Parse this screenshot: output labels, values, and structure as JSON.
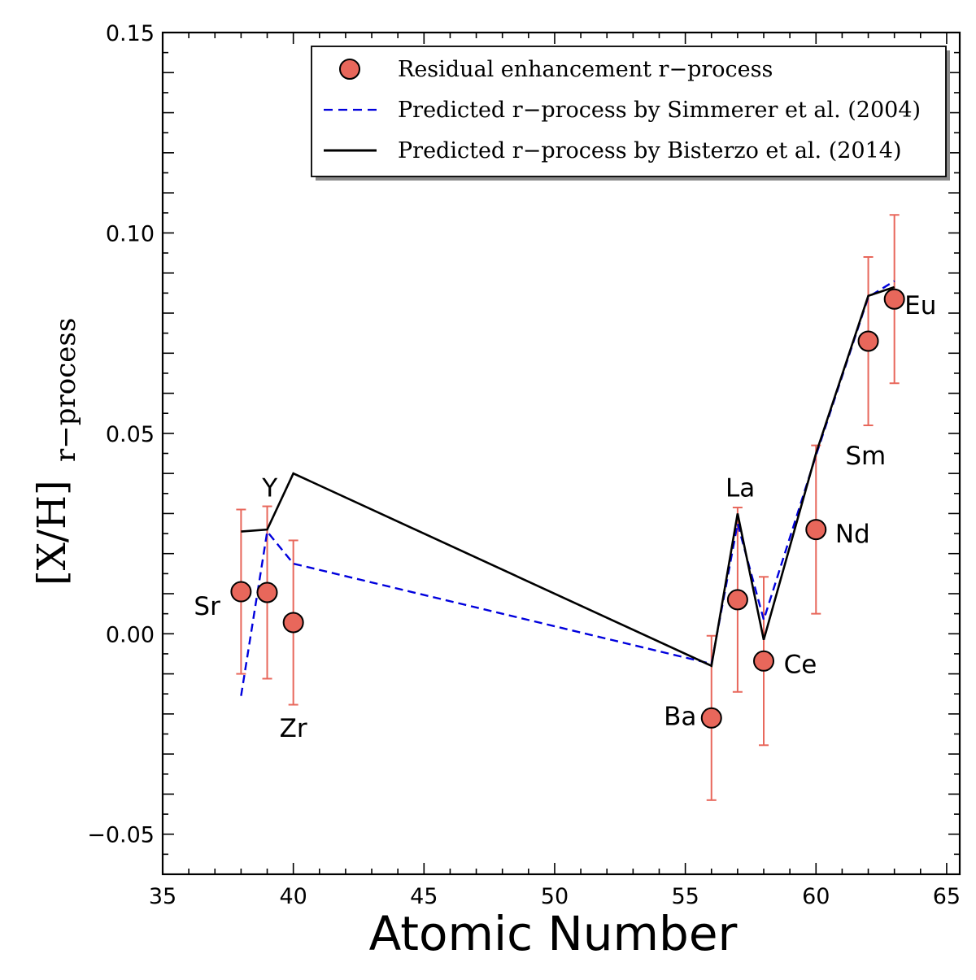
{
  "chart_data": {
    "type": "scatter",
    "xlabel": "Atomic Number",
    "ylabel_main": "[X/H]",
    "ylabel_sub": "r−process",
    "xlim": [
      35,
      65.5
    ],
    "ylim": [
      -0.06,
      0.15
    ],
    "xticks": [
      35,
      40,
      45,
      50,
      55,
      60,
      65
    ],
    "xtick_labels": [
      "35",
      "40",
      "45",
      "50",
      "55",
      "60",
      "65"
    ],
    "yticks": [
      -0.05,
      0.0,
      0.05,
      0.1,
      0.15
    ],
    "ytick_labels": [
      "−0.05",
      "0.00",
      "0.05",
      "0.10",
      "0.15"
    ],
    "legend_position": "top-right",
    "grid": false,
    "series": [
      {
        "name": "Residual enhancement r−process",
        "kind": "points",
        "color": "#e8675b",
        "x": [
          38,
          39,
          40,
          56,
          57,
          58,
          60,
          62,
          63
        ],
        "y": [
          0.0105,
          0.0103,
          0.0028,
          -0.021,
          0.0085,
          -0.0068,
          0.026,
          0.073,
          0.0835
        ],
        "yerr": [
          0.0205,
          0.0215,
          0.0205,
          0.0205,
          0.023,
          0.021,
          0.021,
          0.021,
          0.021
        ]
      },
      {
        "name": "Predicted r−process by Simmerer et al. (2004)",
        "kind": "dashed-line",
        "color": "#0000dd",
        "x": [
          38,
          39,
          40,
          56,
          57,
          58,
          60,
          62,
          63
        ],
        "y": [
          -0.0155,
          0.0255,
          0.0175,
          -0.0075,
          0.0275,
          0.0035,
          0.0445,
          0.084,
          0.088
        ]
      },
      {
        "name": "Predicted r−process by Bisterzo et al. (2014)",
        "kind": "solid-line",
        "color": "#000000",
        "x": [
          38,
          39,
          40,
          56,
          57,
          58,
          60,
          62,
          63
        ],
        "y": [
          0.0255,
          0.026,
          0.04,
          -0.008,
          0.03,
          -0.0015,
          0.045,
          0.0843,
          0.0865
        ]
      }
    ],
    "element_labels": [
      {
        "text": "Sr",
        "x": 36.7,
        "y": 0.007
      },
      {
        "text": "Y",
        "x": 39.1,
        "y": 0.0365
      },
      {
        "text": "Zr",
        "x": 40.0,
        "y": -0.0235
      },
      {
        "text": "Ba",
        "x": 54.8,
        "y": -0.0205
      },
      {
        "text": "La",
        "x": 57.1,
        "y": 0.0365
      },
      {
        "text": "Ce",
        "x": 59.4,
        "y": -0.0075
      },
      {
        "text": "Nd",
        "x": 61.4,
        "y": 0.025
      },
      {
        "text": "Sm",
        "x": 61.9,
        "y": 0.0445
      },
      {
        "text": "Eu",
        "x": 64.0,
        "y": 0.082
      }
    ]
  }
}
